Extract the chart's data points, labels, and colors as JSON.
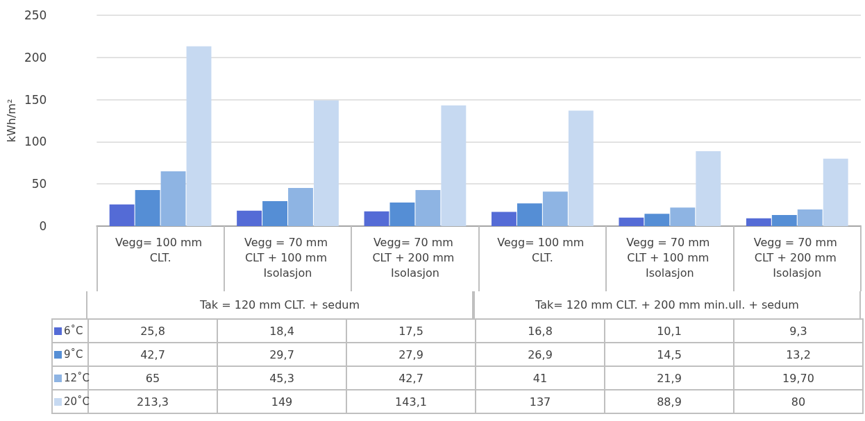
{
  "chart_data": {
    "type": "bar",
    "ylabel": "kWh/m²",
    "ylim": [
      0,
      250
    ],
    "yticks": [
      0,
      50,
      100,
      150,
      200,
      250
    ],
    "grid": "y",
    "legend": "bottom",
    "categories": [
      "Vegg= 100 mm CLT.",
      "Vegg = 70 mm CLT + 100 mm Isolasjon",
      "Vegg= 70 mm CLT + 200 mm Isolasjon",
      "Vegg= 100 mm CLT.",
      "Vegg = 70 mm CLT + 100 mm Isolasjon",
      "Vegg = 70 mm CLT + 200 mm Isolasjon"
    ],
    "annotations": [
      "Tak = 120 mm CLT. + sedum",
      "Tak= 120 mm CLT. + 200 mm min.ull. + sedum"
    ],
    "series": [
      {
        "name": "6˚C",
        "color": "#546bd6",
        "values": [
          25.8,
          18.4,
          17.5,
          16.8,
          10.1,
          9.3
        ],
        "value_labels": [
          "25,8",
          "18,4",
          "17,5",
          "16,8",
          "10,1",
          "9,3"
        ]
      },
      {
        "name": "9˚C",
        "color": "#558ed5",
        "values": [
          42.7,
          29.7,
          27.9,
          26.9,
          14.5,
          13.2
        ],
        "value_labels": [
          "42,7",
          "29,7",
          "27,9",
          "26,9",
          "14,5",
          "13,2"
        ]
      },
      {
        "name": "12˚C",
        "color": "#8eb4e3",
        "values": [
          65,
          45.3,
          42.7,
          41,
          21.9,
          19.7
        ],
        "value_labels": [
          "65",
          "45,3",
          "42,7",
          "41",
          "21,9",
          "19,70"
        ]
      },
      {
        "name": "20˚C",
        "color": "#c6d9f1",
        "values": [
          213.3,
          149,
          143.1,
          137,
          88.9,
          80
        ],
        "value_labels": [
          "213,3",
          "149",
          "143,1",
          "137",
          "88,9",
          "80"
        ]
      }
    ]
  }
}
